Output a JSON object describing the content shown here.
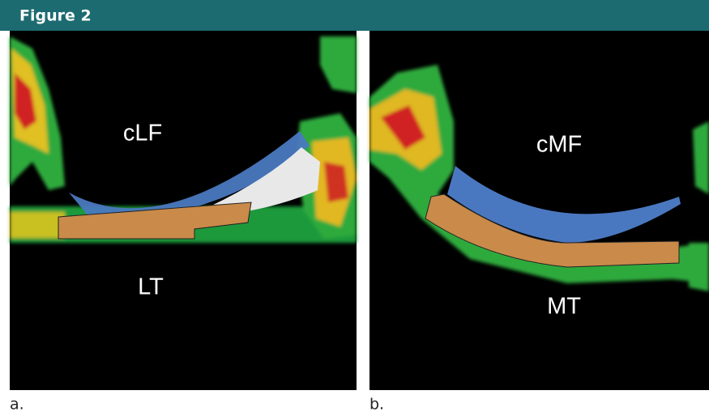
{
  "header": {
    "title": "Figure 2"
  },
  "panels": [
    {
      "labels": [
        "cLF",
        "LT"
      ],
      "caption": "a."
    },
    {
      "labels": [
        "cMF",
        "MT"
      ],
      "caption": "b."
    }
  ]
}
